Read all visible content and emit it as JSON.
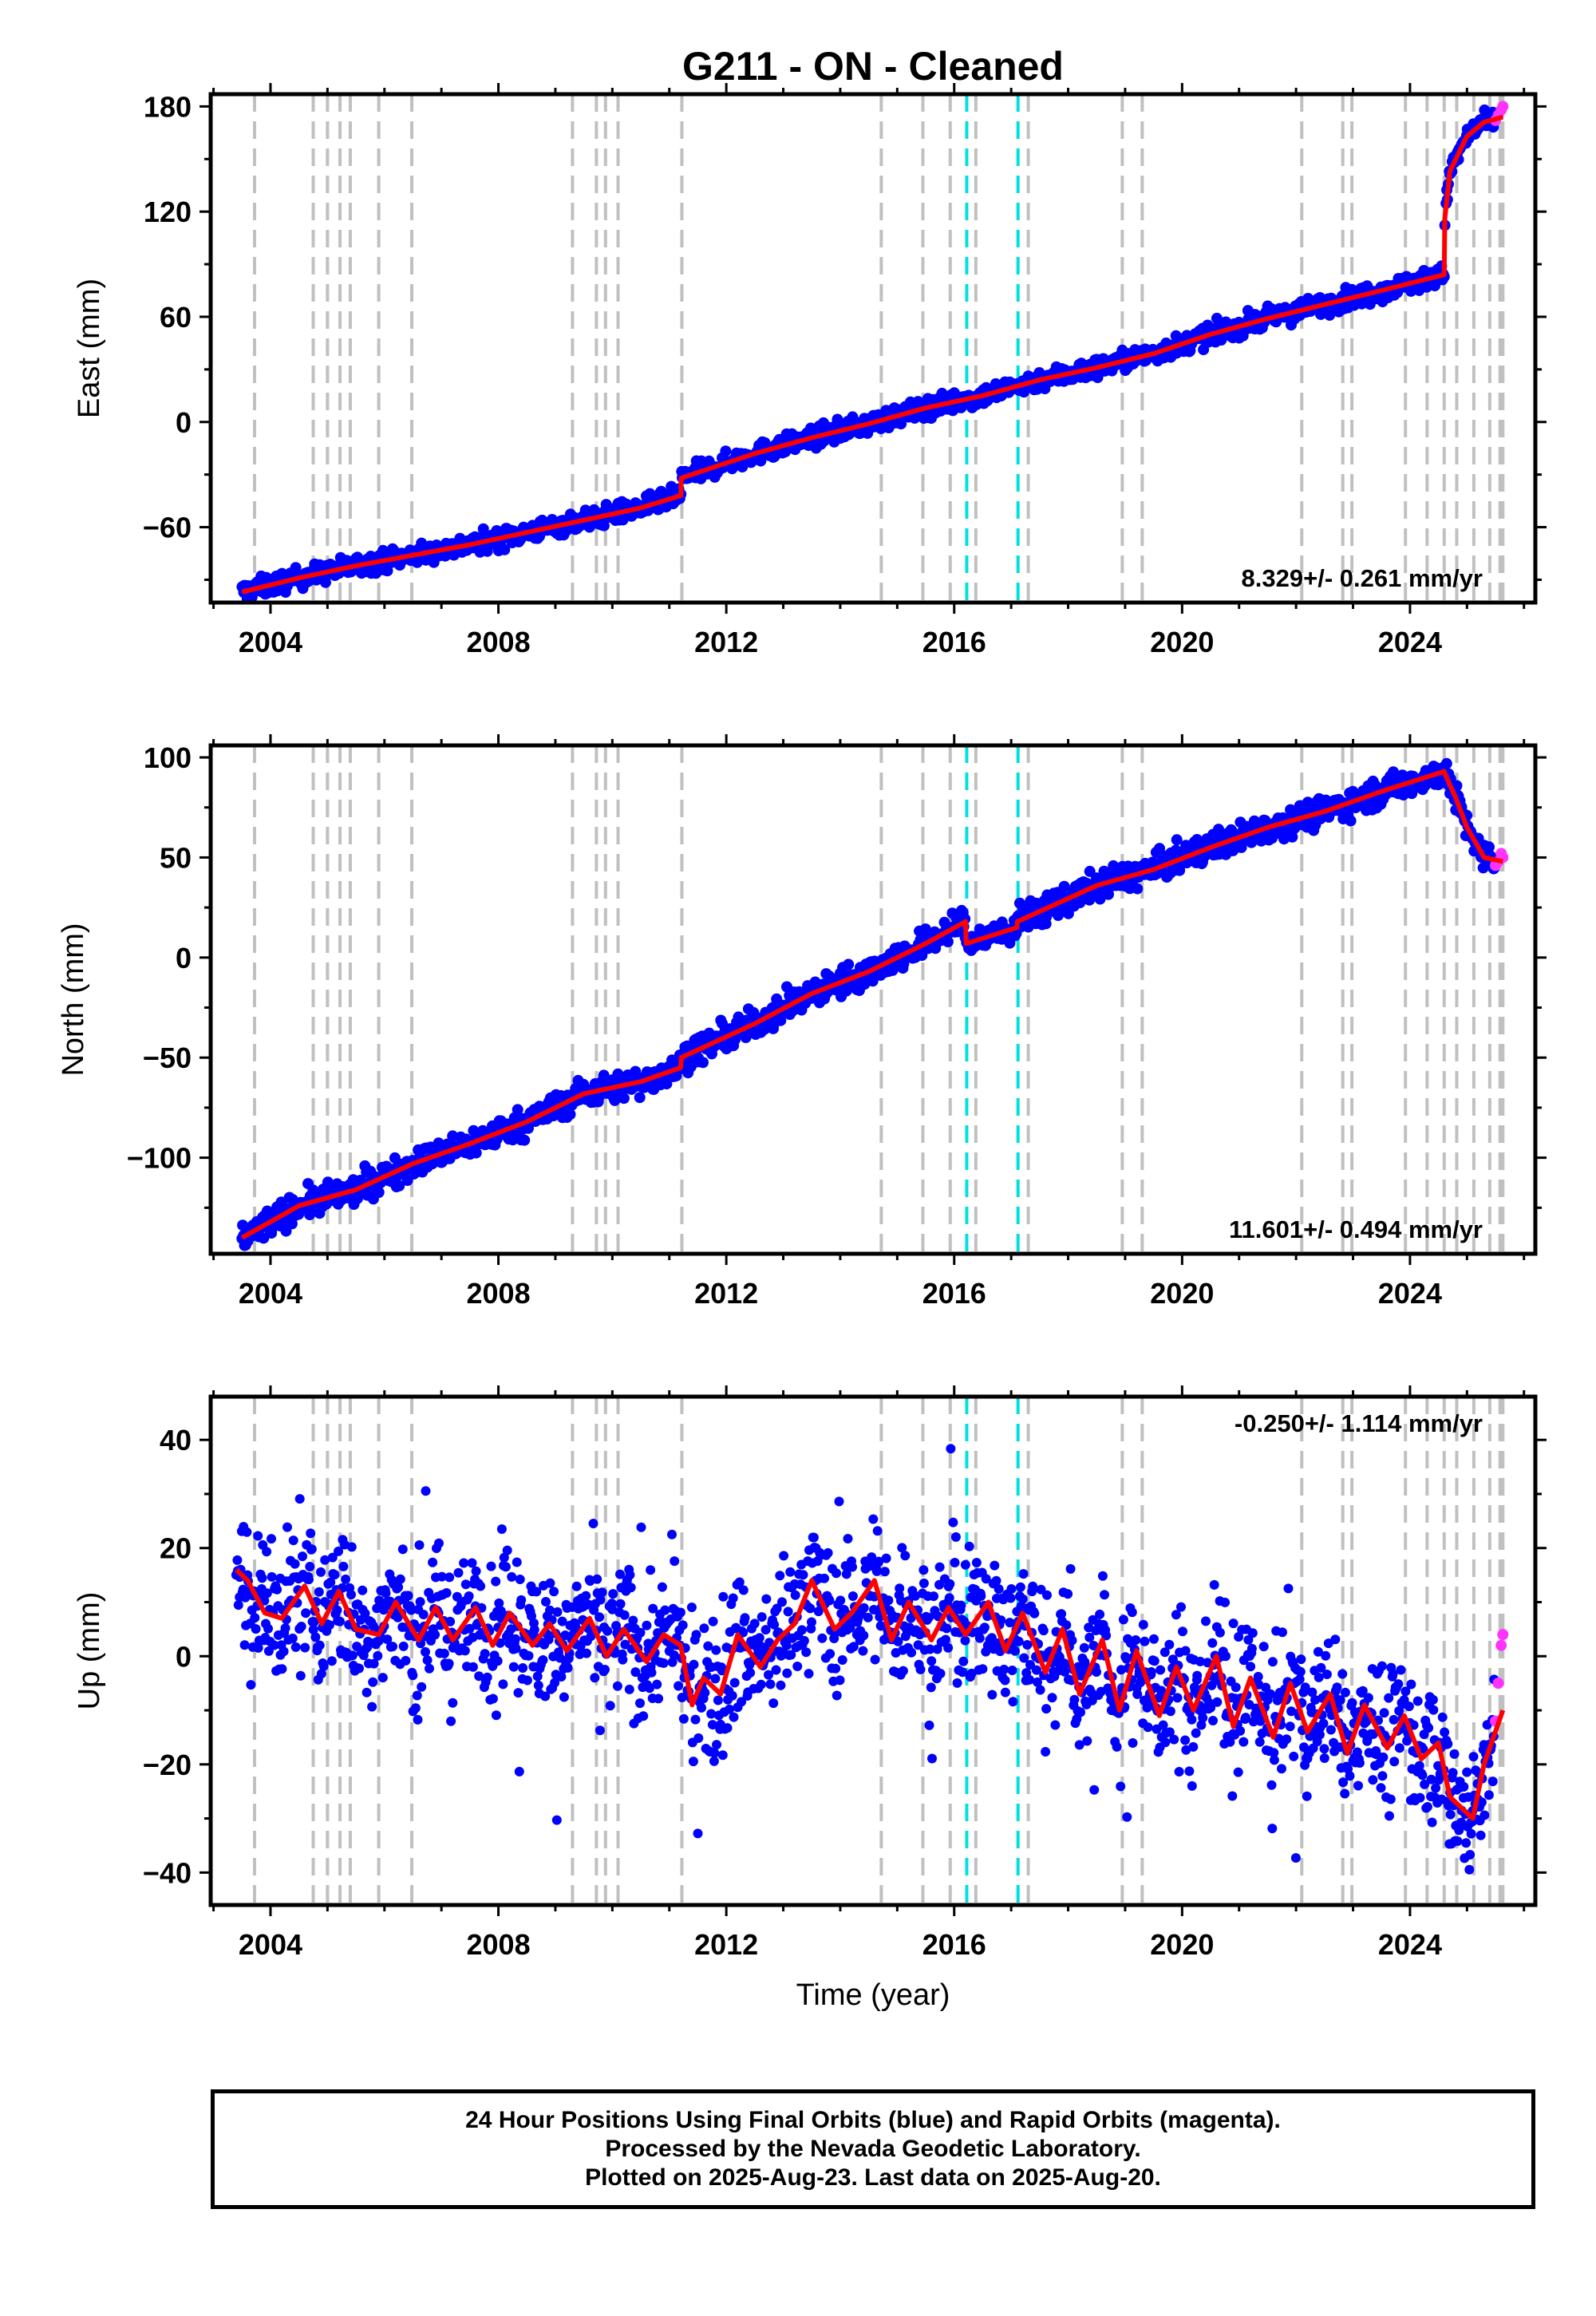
{
  "title": "G211  - ON - Cleaned",
  "footer": {
    "line1": "24 Hour Positions Using Final Orbits (blue) and Rapid Orbits (magenta).",
    "line2": "Processed by the Nevada Geodetic Laboratory.",
    "line3": "Plotted on 2025-Aug-23. Last data on 2025-Aug-20."
  },
  "colors": {
    "final_orbits": "#0000ff",
    "rapid_orbits": "#ff33ff",
    "model_fit": "#ff0000",
    "equipment_change": "#c0c0c0",
    "earthquake": "#00e0e0"
  },
  "x_axis_label": "Time (year)",
  "chart_data": [
    {
      "type": "scatter",
      "ylabel": "East (mm)",
      "rate": "8.329+/- 0.261 mm/yr",
      "rate_position": "bottom-right",
      "xlim": [
        2002.95,
        2026.2
      ],
      "ylim": [
        -103,
        187
      ],
      "xticks": [
        2004,
        2008,
        2012,
        2016,
        2020,
        2024
      ],
      "yticks": [
        -60,
        0,
        60,
        120,
        180
      ],
      "trend": {
        "x": [
          2003.5,
          2004.5,
          2005.5,
          2006.5,
          2007.5,
          2008.5,
          2009.5,
          2010.5,
          2011.2,
          2011.21,
          2012.5,
          2013.5,
          2014.5,
          2015.5,
          2016.5,
          2017.5,
          2018.5,
          2019.5,
          2020.5,
          2021.5,
          2022.5,
          2023.5,
          2024.6,
          2024.61,
          2024.7,
          2025.0,
          2025.3,
          2025.63
        ],
        "y": [
          -97,
          -89,
          -82,
          -76,
          -70,
          -63,
          -56,
          -49,
          -42,
          -32,
          -18,
          -9,
          -1,
          8,
          15,
          24,
          31,
          39,
          50,
          59,
          67,
          75,
          84,
          116,
          143,
          163,
          171,
          174
        ]
      },
      "rapid": {
        "x": [
          2025.5,
          2025.55,
          2025.6,
          2025.63
        ],
        "y": [
          172,
          175,
          178,
          180
        ]
      }
    },
    {
      "type": "scatter",
      "ylabel": "North (mm)",
      "rate": "11.601+/- 0.494 mm/yr",
      "rate_position": "bottom-right",
      "xlim": [
        2002.95,
        2026.2
      ],
      "ylim": [
        -148,
        106
      ],
      "xticks": [
        2004,
        2008,
        2012,
        2016,
        2020,
        2024
      ],
      "yticks": [
        -100,
        -50,
        0,
        50,
        100
      ],
      "trend": {
        "x": [
          2003.5,
          2004.5,
          2005.5,
          2006.5,
          2007.5,
          2008.5,
          2009.5,
          2010.5,
          2011.2,
          2011.21,
          2012.5,
          2013.5,
          2014.5,
          2015.5,
          2016.2,
          2016.21,
          2017.1,
          2017.11,
          2018.5,
          2019.5,
          2020.5,
          2021.5,
          2022.5,
          2023.5,
          2024.6,
          2024.61,
          2024.8,
          2025.0,
          2025.3,
          2025.63
        ],
        "y": [
          -140,
          -124,
          -116,
          -103,
          -93,
          -82,
          -68,
          -62,
          -55,
          -50,
          -33,
          -18,
          -7,
          7,
          18,
          7,
          15,
          18,
          36,
          44,
          55,
          65,
          73,
          83,
          93,
          92,
          80,
          65,
          50,
          48
        ]
      },
      "rapid": {
        "x": [
          2025.5,
          2025.55,
          2025.6,
          2025.63
        ],
        "y": [
          46,
          48,
          52,
          50
        ]
      }
    },
    {
      "type": "scatter",
      "ylabel": "Up (mm)",
      "rate": "-0.250+/- 1.114 mm/yr",
      "rate_position": "top-right",
      "xlim": [
        2002.95,
        2026.2
      ],
      "ylim": [
        -46,
        48
      ],
      "xticks": [
        2004,
        2008,
        2012,
        2016,
        2020,
        2024
      ],
      "yticks": [
        -40,
        -20,
        0,
        20,
        40
      ],
      "trend": {
        "x": [
          2003.4,
          2003.6,
          2003.9,
          2004.2,
          2004.6,
          2004.9,
          2005.2,
          2005.5,
          2005.9,
          2006.2,
          2006.6,
          2006.9,
          2007.2,
          2007.6,
          2007.9,
          2008.2,
          2008.6,
          2008.9,
          2009.2,
          2009.6,
          2009.9,
          2010.2,
          2010.6,
          2010.9,
          2011.2,
          2011.4,
          2011.6,
          2011.9,
          2012.2,
          2012.6,
          2012.9,
          2013.2,
          2013.5,
          2013.9,
          2014.2,
          2014.6,
          2014.9,
          2015.2,
          2015.6,
          2015.9,
          2016.2,
          2016.6,
          2016.9,
          2017.2,
          2017.6,
          2017.9,
          2018.2,
          2018.6,
          2018.9,
          2019.2,
          2019.6,
          2019.9,
          2020.2,
          2020.6,
          2020.9,
          2021.2,
          2021.6,
          2021.9,
          2022.2,
          2022.6,
          2022.9,
          2023.2,
          2023.6,
          2023.9,
          2024.2,
          2024.5,
          2024.7,
          2024.9,
          2025.1,
          2025.3,
          2025.63
        ],
        "y": [
          16,
          14,
          8,
          7,
          13,
          6,
          12,
          5,
          4,
          10,
          3,
          9,
          3,
          9,
          2,
          8,
          2,
          6,
          1,
          7,
          0,
          5,
          -1,
          4,
          2,
          -9,
          -4,
          -7,
          4,
          -2,
          3,
          6,
          14,
          5,
          8,
          14,
          3,
          10,
          3,
          9,
          4,
          10,
          1,
          8,
          -3,
          5,
          -7,
          3,
          -10,
          1,
          -11,
          -2,
          -10,
          0,
          -13,
          -4,
          -15,
          -5,
          -14,
          -7,
          -18,
          -9,
          -17,
          -11,
          -19,
          -16,
          -26,
          -28,
          -30,
          -20,
          -10
        ]
      },
      "rapid": {
        "x": [
          2025.5,
          2025.55,
          2025.6,
          2025.63
        ],
        "y": [
          -12,
          -5,
          2,
          4
        ]
      }
    }
  ],
  "event_lines": {
    "equipment": [
      2003.72,
      2004.75,
      2005.0,
      2005.22,
      2005.4,
      2005.9,
      2006.48,
      2009.3,
      2009.72,
      2009.88,
      2010.1,
      2011.22,
      2014.72,
      2015.45,
      2015.93,
      2016.38,
      2017.3,
      2018.95,
      2019.3,
      2022.1,
      2022.82,
      2022.98,
      2023.92,
      2024.3,
      2024.6,
      2024.82,
      2025.12,
      2025.4,
      2025.58,
      2025.63
    ],
    "earthquake": [
      2016.22,
      2017.12
    ]
  }
}
